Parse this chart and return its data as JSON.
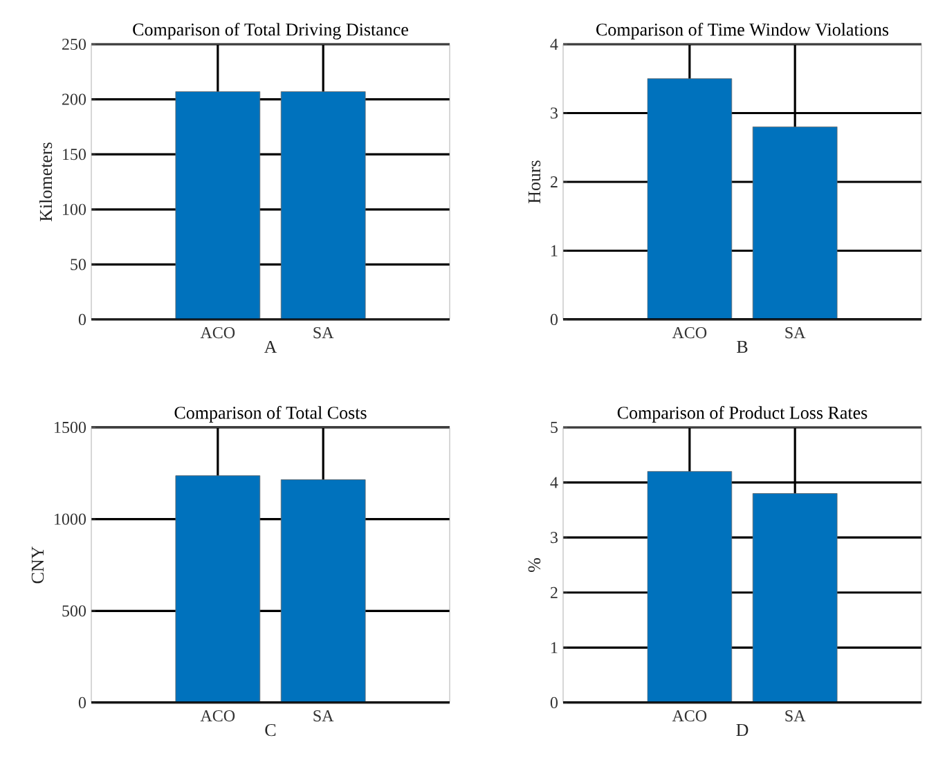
{
  "chart_data": [
    {
      "type": "bar",
      "title": "Comparison of Total Driving Distance",
      "xlabel": "A",
      "ylabel": "Kilometers",
      "categories": [
        "ACO",
        "SA"
      ],
      "values": [
        207,
        207
      ],
      "color": "#0072bd",
      "ylim": [
        0,
        250
      ],
      "yticks": [
        0,
        50,
        100,
        150,
        200,
        250
      ],
      "grid": true
    },
    {
      "type": "bar",
      "title": "Comparison of Time Window Violations",
      "xlabel": "B",
      "ylabel": "Hours",
      "categories": [
        "ACO",
        "SA"
      ],
      "values": [
        3.5,
        2.8
      ],
      "color": "#0072bd",
      "ylim": [
        0,
        4
      ],
      "yticks": [
        0,
        1,
        2,
        3,
        4
      ],
      "grid": true
    },
    {
      "type": "bar",
      "title": "Comparison of Total Costs",
      "xlabel": "C",
      "ylabel": "CNY",
      "categories": [
        "ACO",
        "SA"
      ],
      "values": [
        1237,
        1215
      ],
      "color": "#0072bd",
      "ylim": [
        0,
        1500
      ],
      "yticks": [
        0,
        500,
        1000,
        1500
      ],
      "grid": true
    },
    {
      "type": "bar",
      "title": "Comparison of Product Loss Rates",
      "xlabel": "D",
      "ylabel": "%",
      "categories": [
        "ACO",
        "SA"
      ],
      "values": [
        4.2,
        3.8
      ],
      "color": "#0072bd",
      "ylim": [
        0,
        5
      ],
      "yticks": [
        0,
        1,
        2,
        3,
        4,
        5
      ],
      "grid": true
    }
  ]
}
